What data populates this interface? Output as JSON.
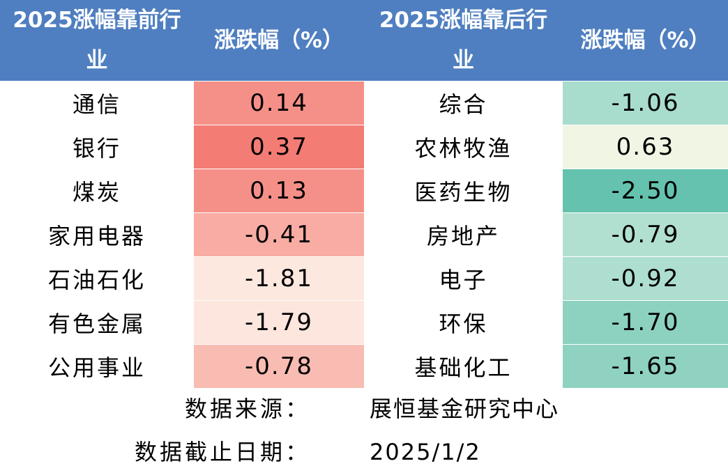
{
  "headers": {
    "top_industry": "2025涨幅靠前行业",
    "top_change": "涨跌幅（%）",
    "bottom_industry": "2025涨幅靠后行业",
    "bottom_change": "涨跌幅（%）"
  },
  "rows": [
    {
      "top_industry": "通信",
      "top_change": "0.14",
      "top_color": "#f59088",
      "bottom_industry": "综合",
      "bottom_change": "-1.06",
      "bottom_color": "#a8dccd"
    },
    {
      "top_industry": "银行",
      "top_change": "0.37",
      "top_color": "#f37c74",
      "bottom_industry": "农林牧渔",
      "bottom_change": "0.63",
      "bottom_color": "#f0f5e4"
    },
    {
      "top_industry": "煤炭",
      "top_change": "0.13",
      "top_color": "#f59088",
      "bottom_industry": "医药生物",
      "bottom_change": "-2.50",
      "bottom_color": "#64c2ae"
    },
    {
      "top_industry": "家用电器",
      "top_change": "-0.41",
      "top_color": "#f8aca3",
      "bottom_industry": "房地产",
      "bottom_change": "-0.79",
      "bottom_color": "#b2e0d0"
    },
    {
      "top_industry": "石油石化",
      "top_change": "-1.81",
      "top_color": "#fde8df",
      "bottom_industry": "电子",
      "bottom_change": "-0.92",
      "bottom_color": "#addecf"
    },
    {
      "top_industry": "有色金属",
      "top_change": "-1.79",
      "top_color": "#fde6dd",
      "bottom_industry": "环保",
      "bottom_change": "-1.70",
      "bottom_color": "#8dd1c0"
    },
    {
      "top_industry": "公用事业",
      "top_change": "-0.78",
      "top_color": "#f9bcb2",
      "bottom_industry": "基础化工",
      "bottom_change": "-1.65",
      "bottom_color": "#8fd2c1"
    }
  ],
  "footer": {
    "source_label": "数据来源：",
    "source_value": "展恒基金研究中心",
    "cutoff_label": "数据截止日期：",
    "cutoff_value": "2025/1/2"
  }
}
